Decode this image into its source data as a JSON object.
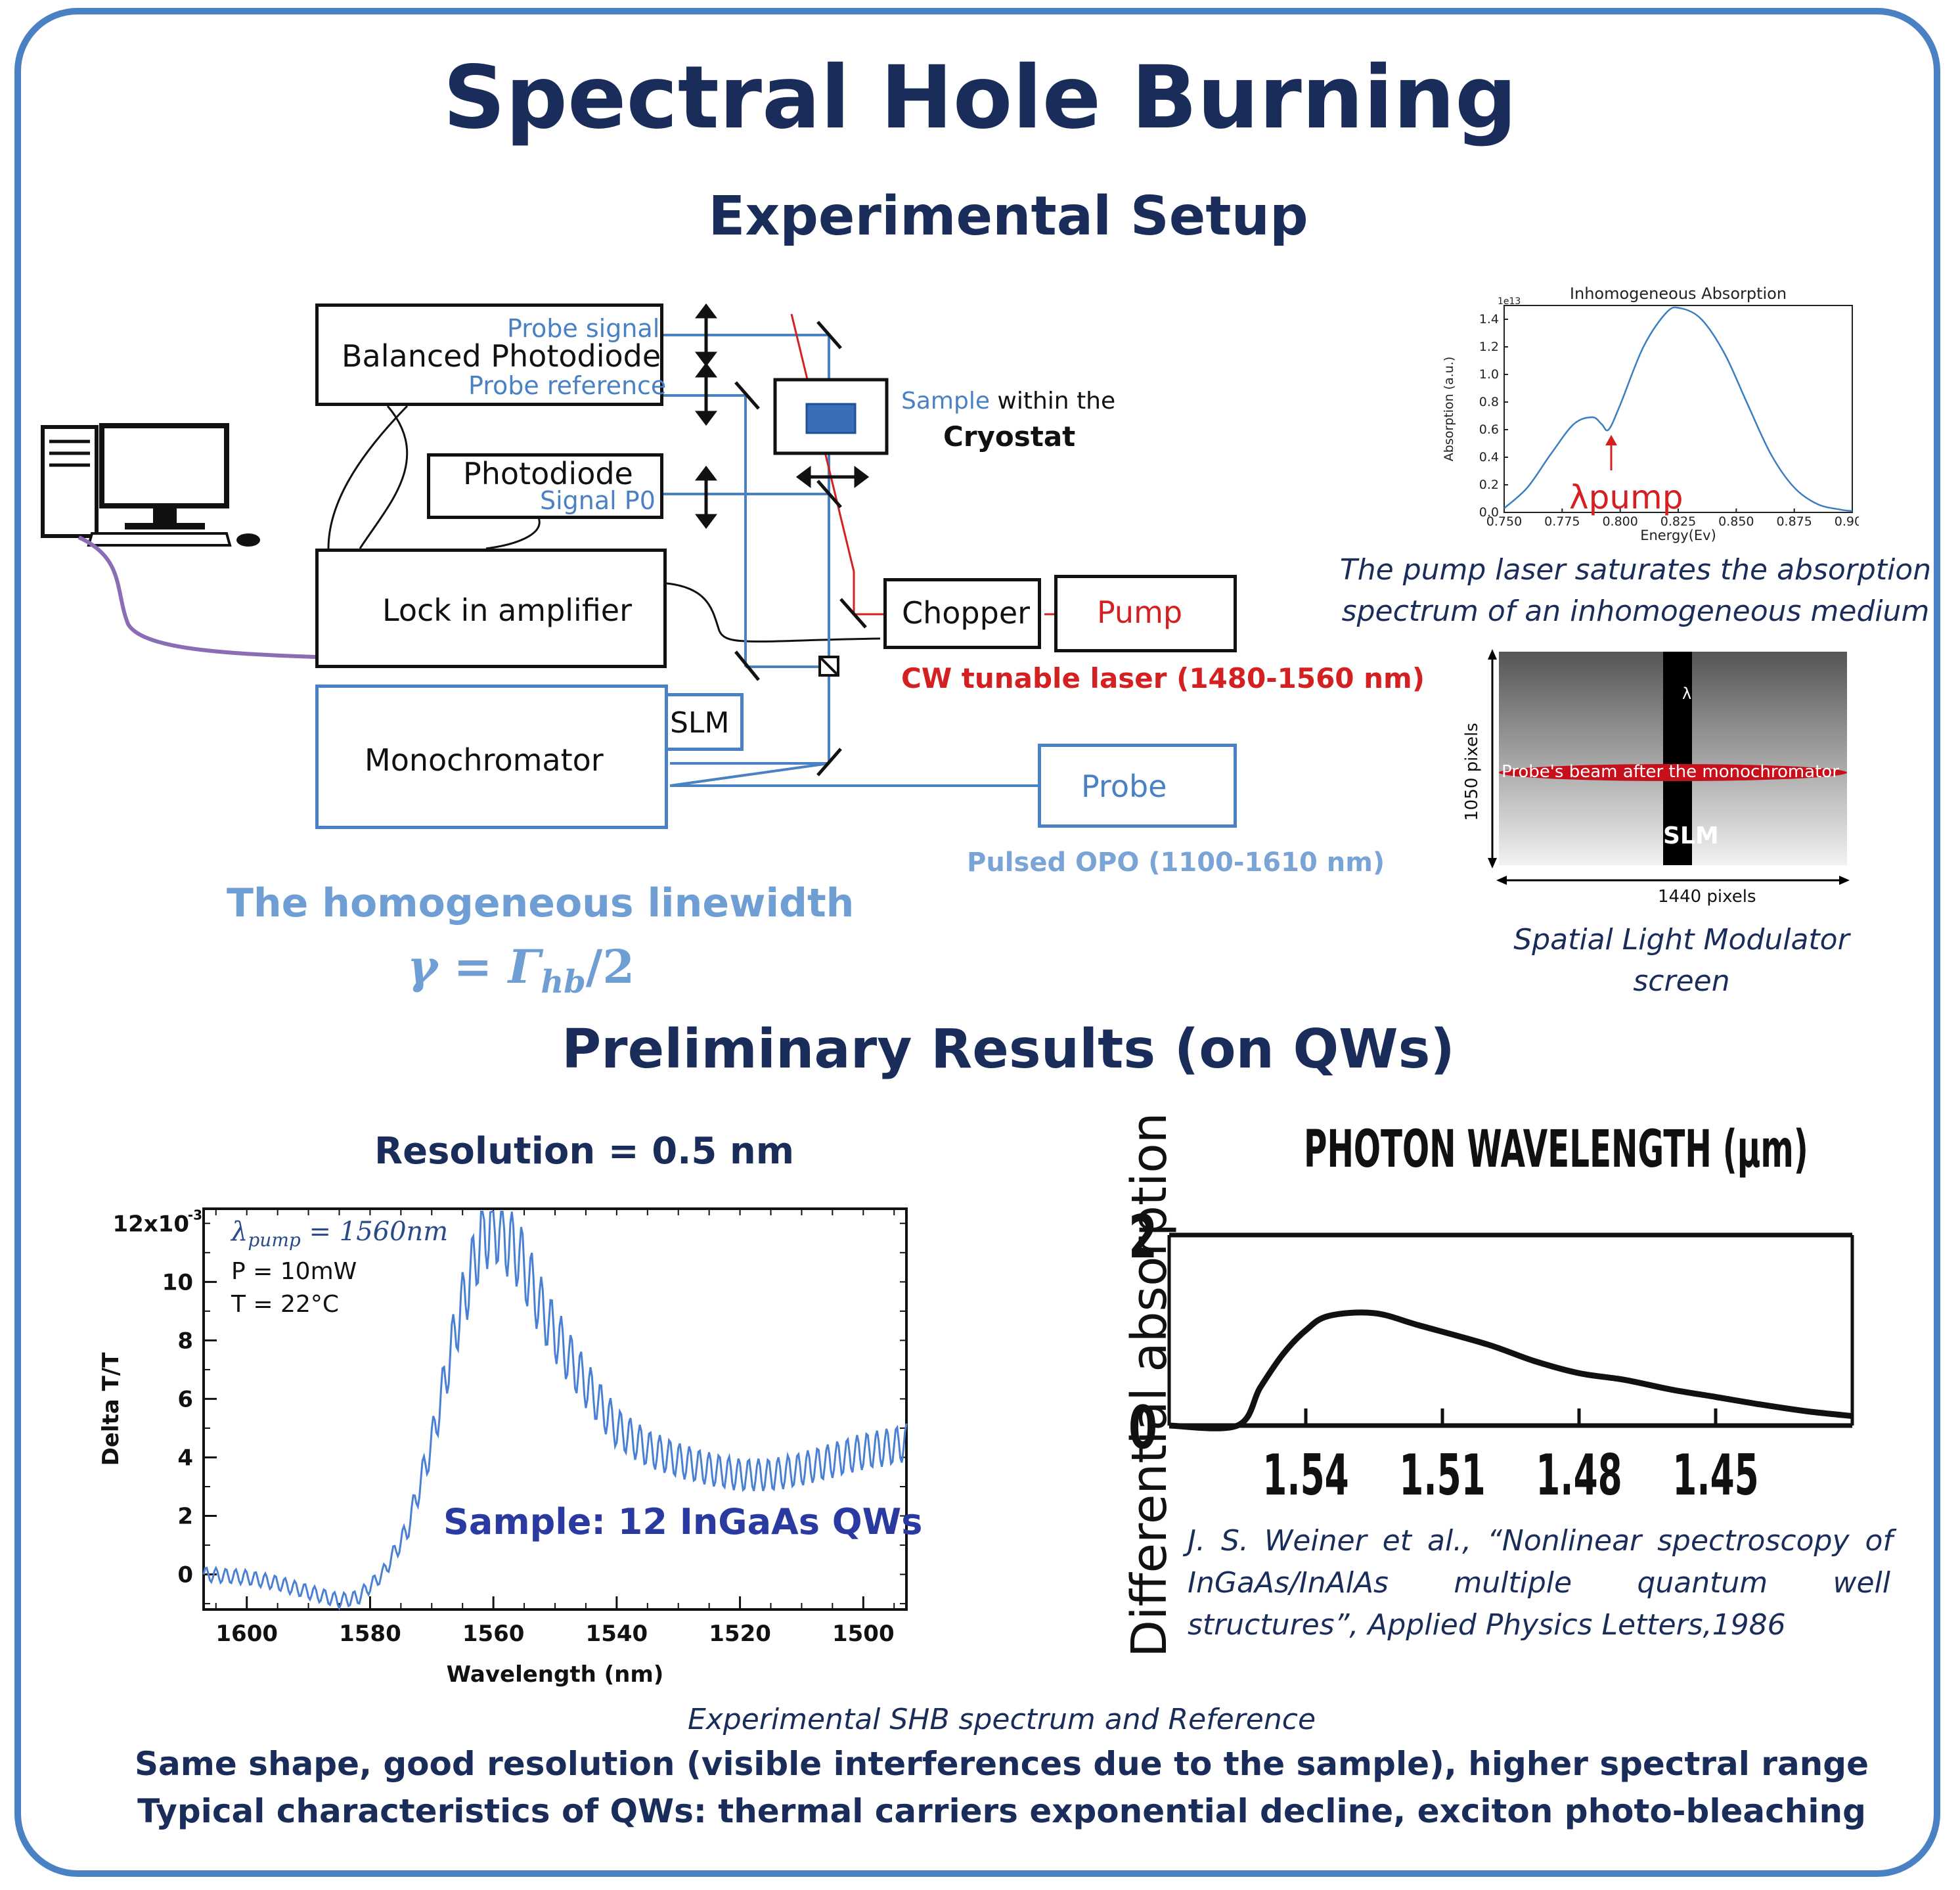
{
  "title": "Spectral Hole Burning",
  "setup_title": "Experimental Setup",
  "results_title": "Preliminary Results (on QWs)",
  "setup": {
    "balanced_photodiode": "Balanced Photodiode",
    "probe_signal": "Probe signal",
    "probe_reference": "Probe reference",
    "photodiode": "Photodiode",
    "signal_p0": "Signal P0",
    "lock_in": "Lock in amplifier",
    "monochromator": "Monochromator",
    "slm": "SLM",
    "chopper": "Chopper",
    "pump": "Pump",
    "cw_laser": "CW tunable laser (1480-1560 nm)",
    "probe": "Probe",
    "pulsed_opo": "Pulsed OPO (1100-1610 nm)",
    "sample_word": "Sample",
    "within_the": " within the",
    "cryostat": "Cryostat"
  },
  "linewidth": {
    "label": "The homogeneous linewidth",
    "formula_gamma": "γ = Γ",
    "formula_sub": "hb",
    "formula_tail": "/2"
  },
  "inhom_caption": [
    "The pump laser saturates the absorption",
    "spectrum of an inhomogeneous medium"
  ],
  "slm_caption": [
    "Spatial Light Modulator",
    "screen"
  ],
  "slm_figure": {
    "lambda": "λ",
    "beam_label": "Probe's beam after the monochromator",
    "slm": "SLM",
    "height_label": "1050 pixels",
    "width_label": "1440 pixels"
  },
  "shb": {
    "resolution": "Resolution = 0.5 nm",
    "lambda_pump_sym": "λ",
    "lambda_pump_sub": "pump",
    "lambda_pump_val": " = 1560nm",
    "power": "P = 10mW",
    "temp": "T = 22°C",
    "sample": "Sample: 12 InGaAs QWs",
    "ylabel": "Delta T/T",
    "xlabel": "Wavelength (nm)",
    "y_exponent": "12x10",
    "y_exp_sup": "-3"
  },
  "reference": {
    "top_label": "PHOTON WAVELENGTH (µm)",
    "ylabel": "Differential absorption",
    "y_ticks": [
      "2",
      "0"
    ],
    "x_ticks": [
      "1.54",
      "1.51",
      "1.48",
      "1.45"
    ],
    "citation": [
      "J. S. Weiner et al., “Nonlinear spectroscopy of",
      "InGaAs/InAlAs multiple quantum well",
      "structures”, Applied Physics Letters,1986"
    ]
  },
  "bottom": {
    "caption": "Experimental SHB spectrum and Reference",
    "line1": "Same shape, good resolution (visible interferences due to the sample), higher spectral range",
    "line2": "Typical characteristics of QWs: thermal carriers exponential decline, exciton photo-bleaching"
  },
  "chart_data": [
    {
      "type": "line",
      "title": "Inhomogeneous Absorption",
      "xlabel": "Energy(Ev)",
      "ylabel": "Absorption (a.u.)",
      "y_scale_label": "1e13",
      "annotation": "λpump",
      "xlim": [
        0.75,
        0.9
      ],
      "ylim": [
        0,
        1.5
      ],
      "x_ticks": [
        "0.750",
        "0.775",
        "0.800",
        "0.825",
        "0.850",
        "0.875",
        "0.900"
      ],
      "y_ticks": [
        "0.0",
        "0.2",
        "0.4",
        "0.6",
        "0.8",
        "1.0",
        "1.2",
        "1.4"
      ],
      "x": [
        0.75,
        0.76,
        0.77,
        0.78,
        0.788,
        0.792,
        0.795,
        0.8,
        0.81,
        0.82,
        0.826,
        0.835,
        0.845,
        0.855,
        0.865,
        0.875,
        0.885,
        0.895,
        0.9
      ],
      "y": [
        0.03,
        0.18,
        0.42,
        0.64,
        0.69,
        0.64,
        0.6,
        0.78,
        1.2,
        1.45,
        1.48,
        1.4,
        1.15,
        0.78,
        0.42,
        0.18,
        0.06,
        0.02,
        0.01
      ]
    },
    {
      "type": "line",
      "xlabel": "Wavelength (nm)",
      "ylabel": "Delta T/T",
      "xlim": [
        1607,
        1493
      ],
      "ylim": [
        -1.2,
        12.5
      ],
      "x_ticks": [
        "1600",
        "1580",
        "1560",
        "1540",
        "1520",
        "1500"
      ],
      "y_ticks": [
        "0",
        "2",
        "4",
        "6",
        "8",
        "10"
      ],
      "x": [
        1607,
        1600,
        1595,
        1590,
        1585,
        1582,
        1578,
        1574,
        1570,
        1566,
        1562,
        1560,
        1556,
        1552,
        1548,
        1544,
        1540,
        1535,
        1530,
        1525,
        1520,
        1515,
        1510,
        1505,
        1500,
        1495,
        1493
      ],
      "y": [
        0,
        -0.1,
        -0.3,
        -0.6,
        -0.9,
        -0.8,
        0,
        1.5,
        4.5,
        8.5,
        11.5,
        12,
        11,
        9,
        7.5,
        6.2,
        5,
        4.3,
        3.9,
        3.6,
        3.4,
        3.4,
        3.6,
        3.9,
        4.2,
        4.4,
        4.5
      ]
    },
    {
      "type": "line",
      "xlabel": "PHOTON WAVELENGTH (µm)",
      "ylabel": "Differential absorption",
      "x_ticks": [
        "1.54",
        "1.51",
        "1.48",
        "1.45"
      ],
      "y_ticks": [
        "0",
        "2"
      ],
      "xlim": [
        1.57,
        1.42
      ],
      "ylim": [
        0,
        2
      ],
      "x": [
        1.555,
        1.55,
        1.545,
        1.54,
        1.535,
        1.525,
        1.515,
        1.5,
        1.49,
        1.48,
        1.47,
        1.46,
        1.45,
        1.44,
        1.43,
        1.42
      ],
      "y": [
        0,
        0.4,
        0.75,
        1.0,
        1.15,
        1.18,
        1.05,
        0.85,
        0.68,
        0.55,
        0.48,
        0.38,
        0.3,
        0.22,
        0.15,
        0.1
      ]
    }
  ]
}
